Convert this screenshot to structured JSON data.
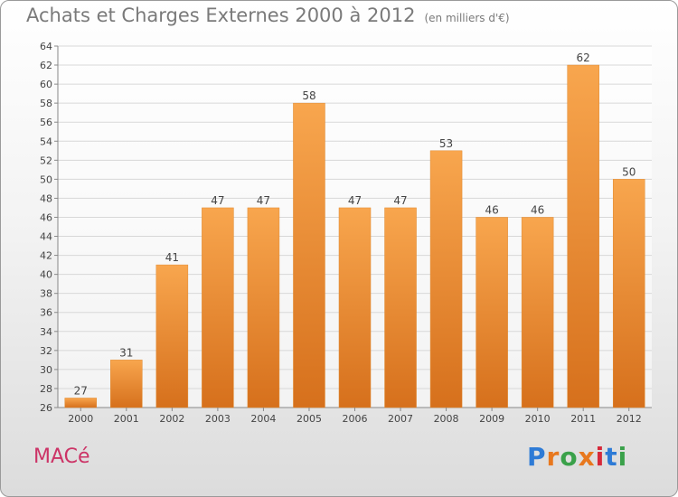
{
  "title": "Achats et Charges Externes 2000 à 2012",
  "subtitle": "(en milliers d'€)",
  "commune": "MACé",
  "brand": {
    "text": "Proxiti",
    "letter_colors": [
      "#2e7bd6",
      "#e8781e",
      "#3aa14a",
      "#e8781e",
      "#d6293a",
      "#2e7bd6",
      "#3aa14a"
    ]
  },
  "colors": {
    "bar_top": "#f8a64e",
    "bar_bottom": "#d6701c",
    "grid": "#d8d8d8",
    "axis": "#888888"
  },
  "chart_data": {
    "type": "bar",
    "categories": [
      "2000",
      "2001",
      "2002",
      "2003",
      "2004",
      "2005",
      "2006",
      "2007",
      "2008",
      "2009",
      "2010",
      "2011",
      "2012"
    ],
    "values": [
      27,
      31,
      41,
      47,
      47,
      58,
      47,
      47,
      53,
      46,
      46,
      62,
      50
    ],
    "ylim": [
      26,
      64
    ],
    "yticks": [
      26,
      28,
      30,
      32,
      34,
      36,
      38,
      40,
      42,
      44,
      46,
      48,
      50,
      52,
      54,
      56,
      58,
      60,
      62,
      64
    ],
    "grid": true,
    "title": "Achats et Charges Externes 2000 à 2012",
    "xlabel": "",
    "ylabel": ""
  }
}
